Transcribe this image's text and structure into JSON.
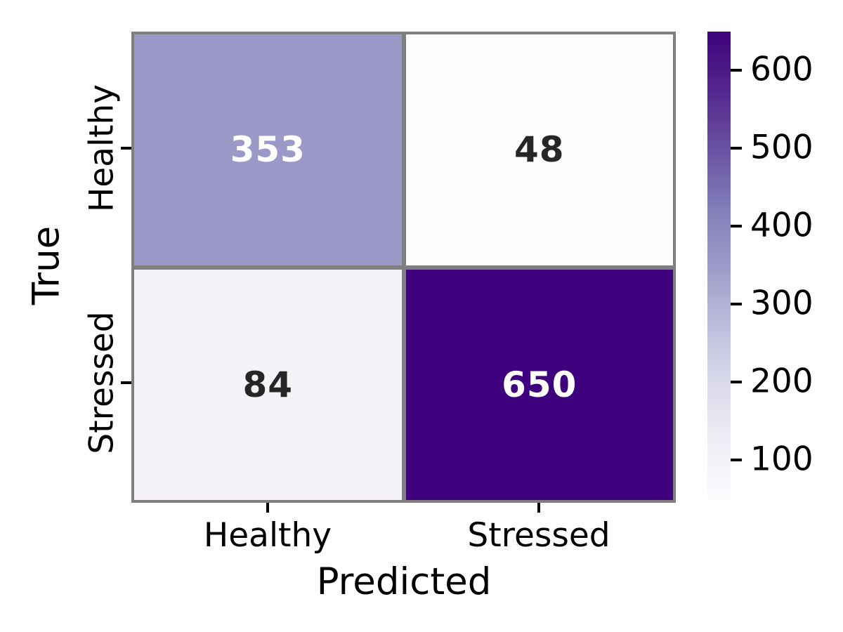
{
  "chart_data": {
    "type": "heatmap",
    "subtype": "confusion-matrix",
    "xlabel": "Predicted",
    "ylabel": "True",
    "x_categories": [
      "Healthy",
      "Stressed"
    ],
    "y_categories": [
      "Healthy",
      "Stressed"
    ],
    "values": [
      [
        353,
        48
      ],
      [
        84,
        650
      ]
    ],
    "vmin": 48,
    "vmax": 650,
    "colormap": "Purples",
    "grid_color": "#7f7f7f",
    "cells": [
      {
        "row": "Healthy",
        "col": "Healthy",
        "value": "353",
        "bg": "#9c98c7",
        "fg": "#ffffff"
      },
      {
        "row": "Healthy",
        "col": "Stressed",
        "value": "48",
        "bg": "#fcfbfd",
        "fg": "#262626"
      },
      {
        "row": "Stressed",
        "col": "Healthy",
        "value": "84",
        "bg": "#f5f3f8",
        "fg": "#262626"
      },
      {
        "row": "Stressed",
        "col": "Stressed",
        "value": "650",
        "bg": "#3f007d",
        "fg": "#ffffff"
      }
    ],
    "colormap_stops": [
      "#fcfbfd",
      "#efedf5",
      "#dadaeb",
      "#bcbddc",
      "#9e9ac8",
      "#807dba",
      "#6a51a3",
      "#54278f",
      "#3f007d"
    ],
    "colorbar": {
      "position": "right",
      "ticks": [
        "100",
        "200",
        "300",
        "400",
        "500",
        "600"
      ]
    },
    "legend": "none",
    "grid": "off"
  }
}
